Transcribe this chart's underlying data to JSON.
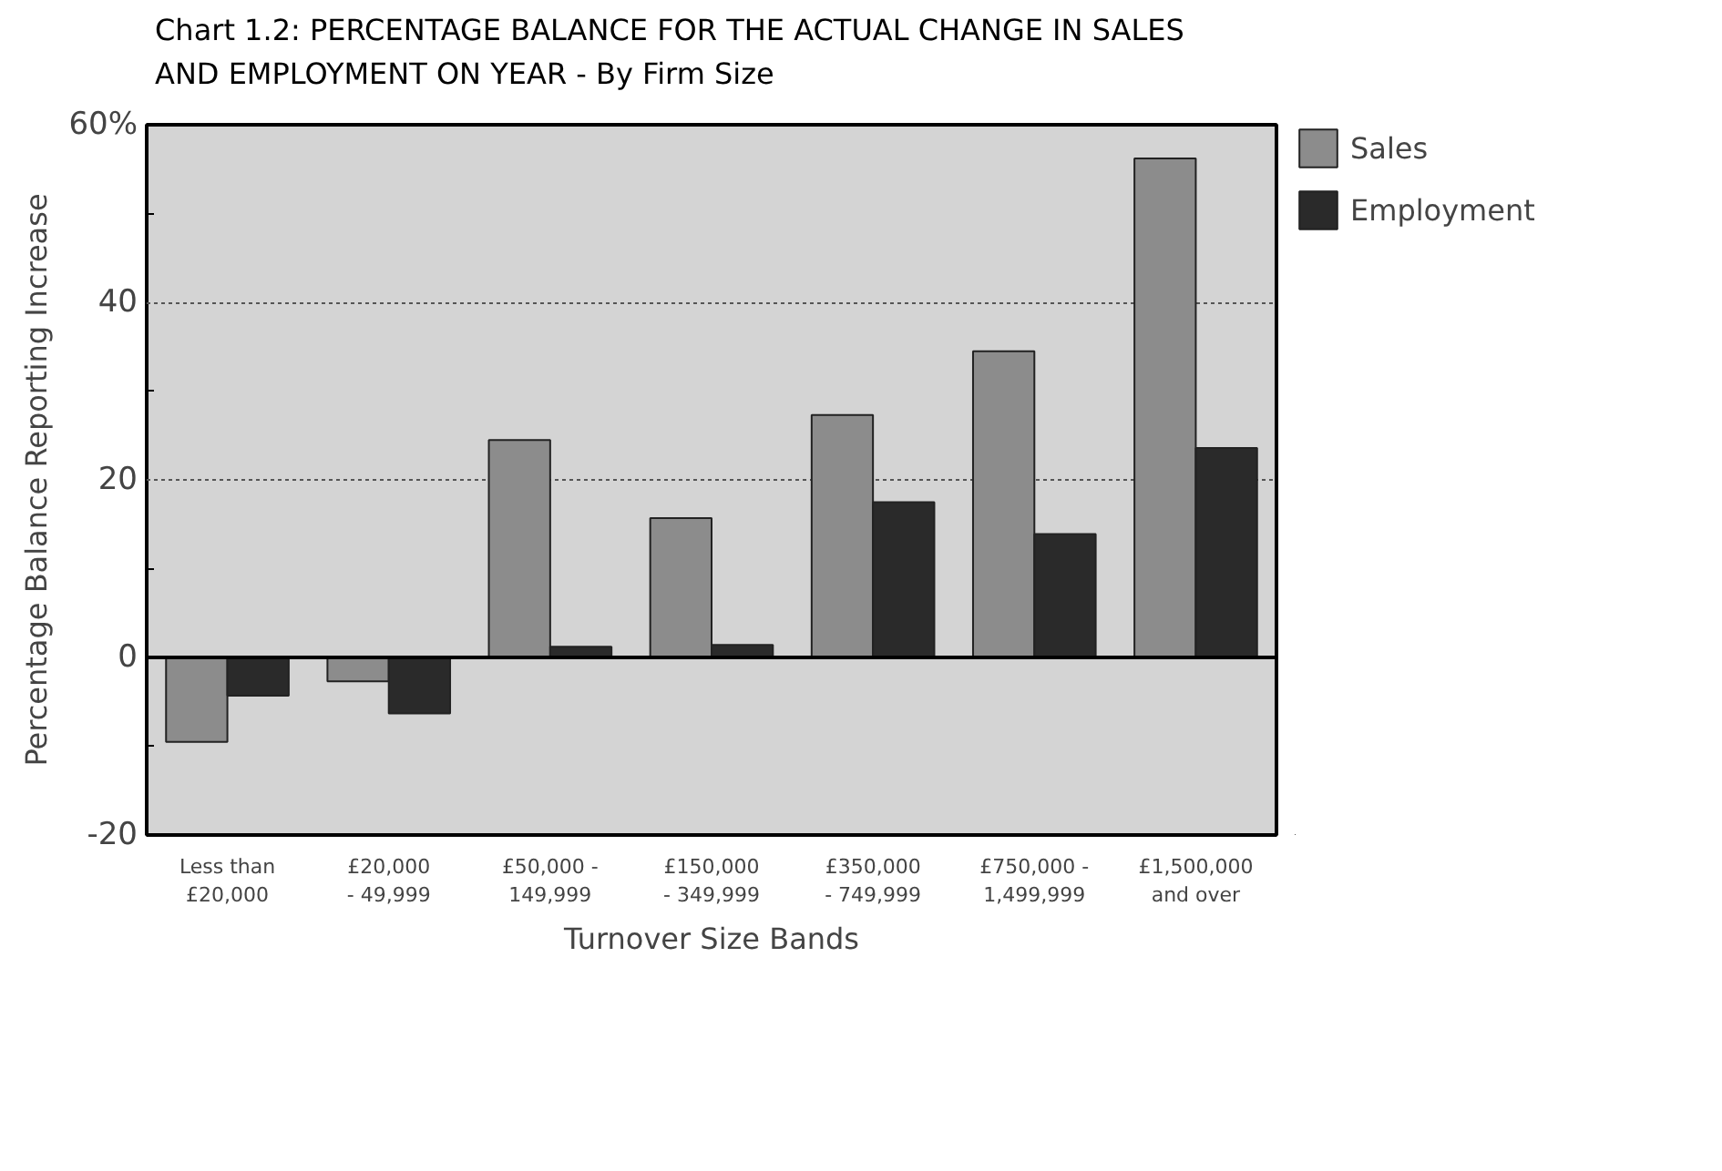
{
  "chart_data": {
    "type": "bar",
    "title": "Chart 1.2:  PERCENTAGE BALANCE FOR THE ACTUAL CHANGE IN SALES\nAND EMPLOYMENT ON YEAR - By Firm Size",
    "xlabel": "Turnover Size Bands",
    "ylabel": "Percentage Balance Reporting Increase",
    "categories": [
      "Less than £20,000",
      "£20,000 - 49,999",
      "£50,000 - 149,999",
      "£150,000 - 349,999",
      "£350,000 - 749,999",
      "£750,000 - 1,499,999",
      "£1,500,000 and over"
    ],
    "series": [
      {
        "name": "Sales",
        "color": "#8c8c8c",
        "values": [
          -9.5,
          -2.7,
          24.5,
          15.7,
          27.3,
          34.5,
          56.2
        ]
      },
      {
        "name": "Employment",
        "color": "#2a2a2a",
        "values": [
          -4.3,
          -6.3,
          1.2,
          1.4,
          17.5,
          13.9,
          23.6
        ]
      }
    ],
    "ylim": [
      -20,
      60
    ],
    "yticks": [
      -20,
      {
        "value": -10,
        "label": null
      },
      0,
      {
        "value": 10,
        "label": null
      },
      20,
      {
        "value": 30,
        "label": null
      },
      40,
      {
        "value": 50,
        "label": null
      },
      {
        "value": 60,
        "label": "60%"
      }
    ],
    "grid": "y",
    "legend": "top right"
  }
}
